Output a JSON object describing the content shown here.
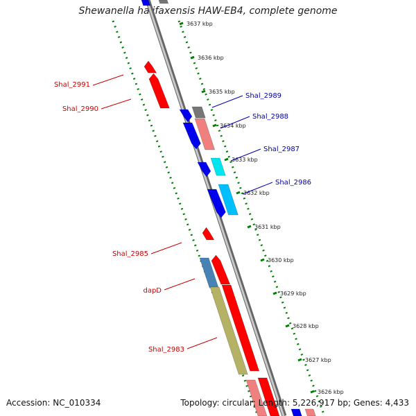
{
  "title": "Shewanella halifaxensis HAW-EB4, complete genome",
  "footer": {
    "accession": "Accession: NC_010334",
    "summary": "Topology: circular; Length: 5,226,917 bp; Genes: 4,433"
  },
  "colors": {
    "forward_gene": "#ff0000",
    "reverse_gene": "#0000ee",
    "gc_skew": "#008000",
    "backbone": "#888888",
    "forward_label": "#cc0000",
    "reverse_label": "#0000aa"
  },
  "ticks": [
    {
      "label": "3637 kbp"
    },
    {
      "label": "3636 kbp"
    },
    {
      "label": "3635 kbp"
    },
    {
      "label": "3634 kbp"
    },
    {
      "label": "3633 kbp"
    },
    {
      "label": "3632 kbp"
    },
    {
      "label": "3631 kbp"
    },
    {
      "label": "3630 kbp"
    },
    {
      "label": "3629 kbp"
    },
    {
      "label": "3628 kbp"
    },
    {
      "label": "3627 kbp"
    },
    {
      "label": "3626 kbp"
    }
  ],
  "gene_labels": [
    {
      "name": "Shal_2991",
      "strand": "forward"
    },
    {
      "name": "Shal_2990",
      "strand": "forward"
    },
    {
      "name": "Shal_2989",
      "strand": "reverse"
    },
    {
      "name": "Shal_2988",
      "strand": "reverse"
    },
    {
      "name": "Shal_2987",
      "strand": "reverse"
    },
    {
      "name": "Shal_2986",
      "strand": "reverse"
    },
    {
      "name": "Shal_2985",
      "strand": "forward"
    },
    {
      "name": "dapD",
      "strand": "forward"
    },
    {
      "name": "Shal_2983",
      "strand": "forward"
    }
  ]
}
